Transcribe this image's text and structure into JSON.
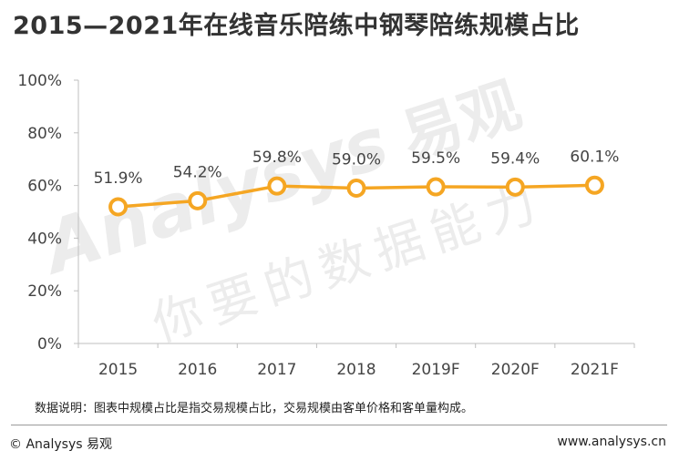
{
  "header": {
    "title": "2015—2021年在线音乐陪练中钢琴陪练规模占比"
  },
  "chart_data": {
    "type": "line",
    "categories": [
      "2015",
      "2016",
      "2017",
      "2018",
      "2019F",
      "2020F",
      "2021F"
    ],
    "values": [
      51.9,
      54.2,
      59.8,
      59.0,
      59.5,
      59.4,
      60.1
    ],
    "data_labels": [
      "51.9%",
      "54.2%",
      "59.8%",
      "59.0%",
      "59.5%",
      "59.4%",
      "60.1%"
    ],
    "ylim": [
      0,
      100
    ],
    "yticks": [
      0,
      20,
      40,
      60,
      80,
      100
    ],
    "ytick_labels": [
      "0%",
      "20%",
      "40%",
      "60%",
      "80%",
      "100%"
    ],
    "grid": false,
    "legend": "none",
    "colors": {
      "line": "#F5A623",
      "marker_fill": "#ffffff",
      "axis": "#bfbfbf"
    }
  },
  "footnote": "数据说明：图表中规模占比是指交易规模占比，交易规模由客单价格和客单量构成。",
  "footer": {
    "copyright": "© Analysys 易观",
    "website": "www.analysys.cn"
  },
  "watermark": {
    "brand": "Analysys",
    "brand_cn": "易观",
    "slogan": "你要的数据能力"
  }
}
